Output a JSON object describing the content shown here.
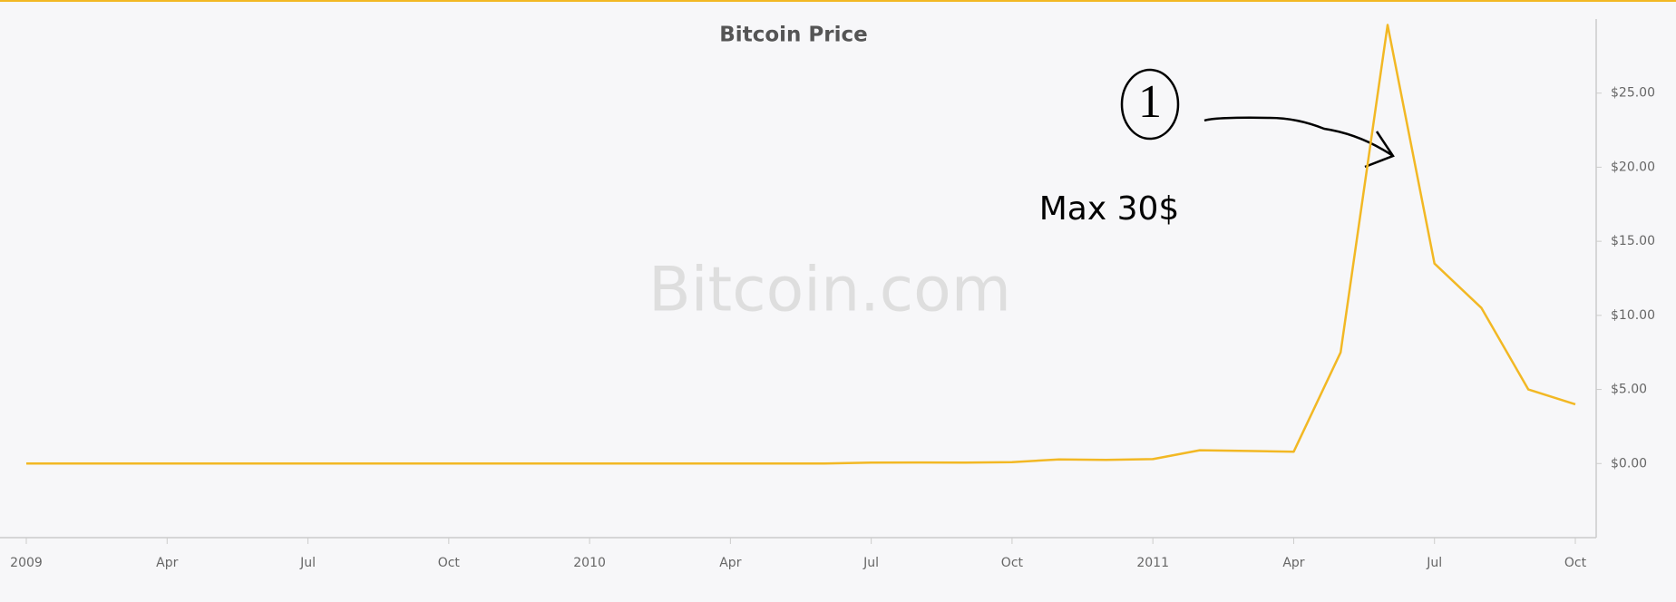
{
  "chart_data": {
    "type": "line",
    "title": "Bitcoin Price",
    "watermark": "Bitcoin.com",
    "annotations": [
      "1",
      "Max 30$"
    ],
    "x": [
      "2009-01",
      "2009-02",
      "2009-03",
      "2009-04",
      "2009-05",
      "2009-06",
      "2009-07",
      "2009-08",
      "2009-09",
      "2009-10",
      "2009-11",
      "2009-12",
      "2010-01",
      "2010-02",
      "2010-03",
      "2010-04",
      "2010-05",
      "2010-06",
      "2010-07",
      "2010-08",
      "2010-09",
      "2010-10",
      "2010-11",
      "2010-12",
      "2011-01",
      "2011-02",
      "2011-03",
      "2011-04",
      "2011-05",
      "2011-06",
      "2011-07",
      "2011-08",
      "2011-09",
      "2011-10"
    ],
    "values": [
      0,
      0,
      0,
      0,
      0,
      0,
      0,
      0,
      0,
      0,
      0,
      0,
      0,
      0,
      0,
      0,
      0,
      0,
      0.06,
      0.07,
      0.06,
      0.1,
      0.28,
      0.25,
      0.3,
      0.9,
      0.85,
      0.8,
      7.5,
      29.6,
      13.5,
      10.5,
      5,
      4
    ],
    "color": "#f2b824",
    "xlim": [
      "2009-01",
      "2011-10"
    ],
    "xticks": [
      {
        "value": "2009-01",
        "label": "2009"
      },
      {
        "value": "2009-04",
        "label": "Apr"
      },
      {
        "value": "2009-07",
        "label": "Jul"
      },
      {
        "value": "2009-10",
        "label": "Oct"
      },
      {
        "value": "2010-01",
        "label": "2010"
      },
      {
        "value": "2010-04",
        "label": "Apr"
      },
      {
        "value": "2010-07",
        "label": "Jul"
      },
      {
        "value": "2010-10",
        "label": "Oct"
      },
      {
        "value": "2011-01",
        "label": "2011"
      },
      {
        "value": "2011-04",
        "label": "Apr"
      },
      {
        "value": "2011-07",
        "label": "Jul"
      },
      {
        "value": "2011-10",
        "label": "Oct"
      }
    ],
    "ylim": [
      -5,
      30
    ],
    "yticks": [
      {
        "value": 0,
        "label": "$0.00"
      },
      {
        "value": 5,
        "label": "$5.00"
      },
      {
        "value": 10,
        "label": "$10.00"
      },
      {
        "value": 15,
        "label": "$15.00"
      },
      {
        "value": 20,
        "label": "$20.00"
      },
      {
        "value": 25,
        "label": "$25.00"
      }
    ]
  }
}
